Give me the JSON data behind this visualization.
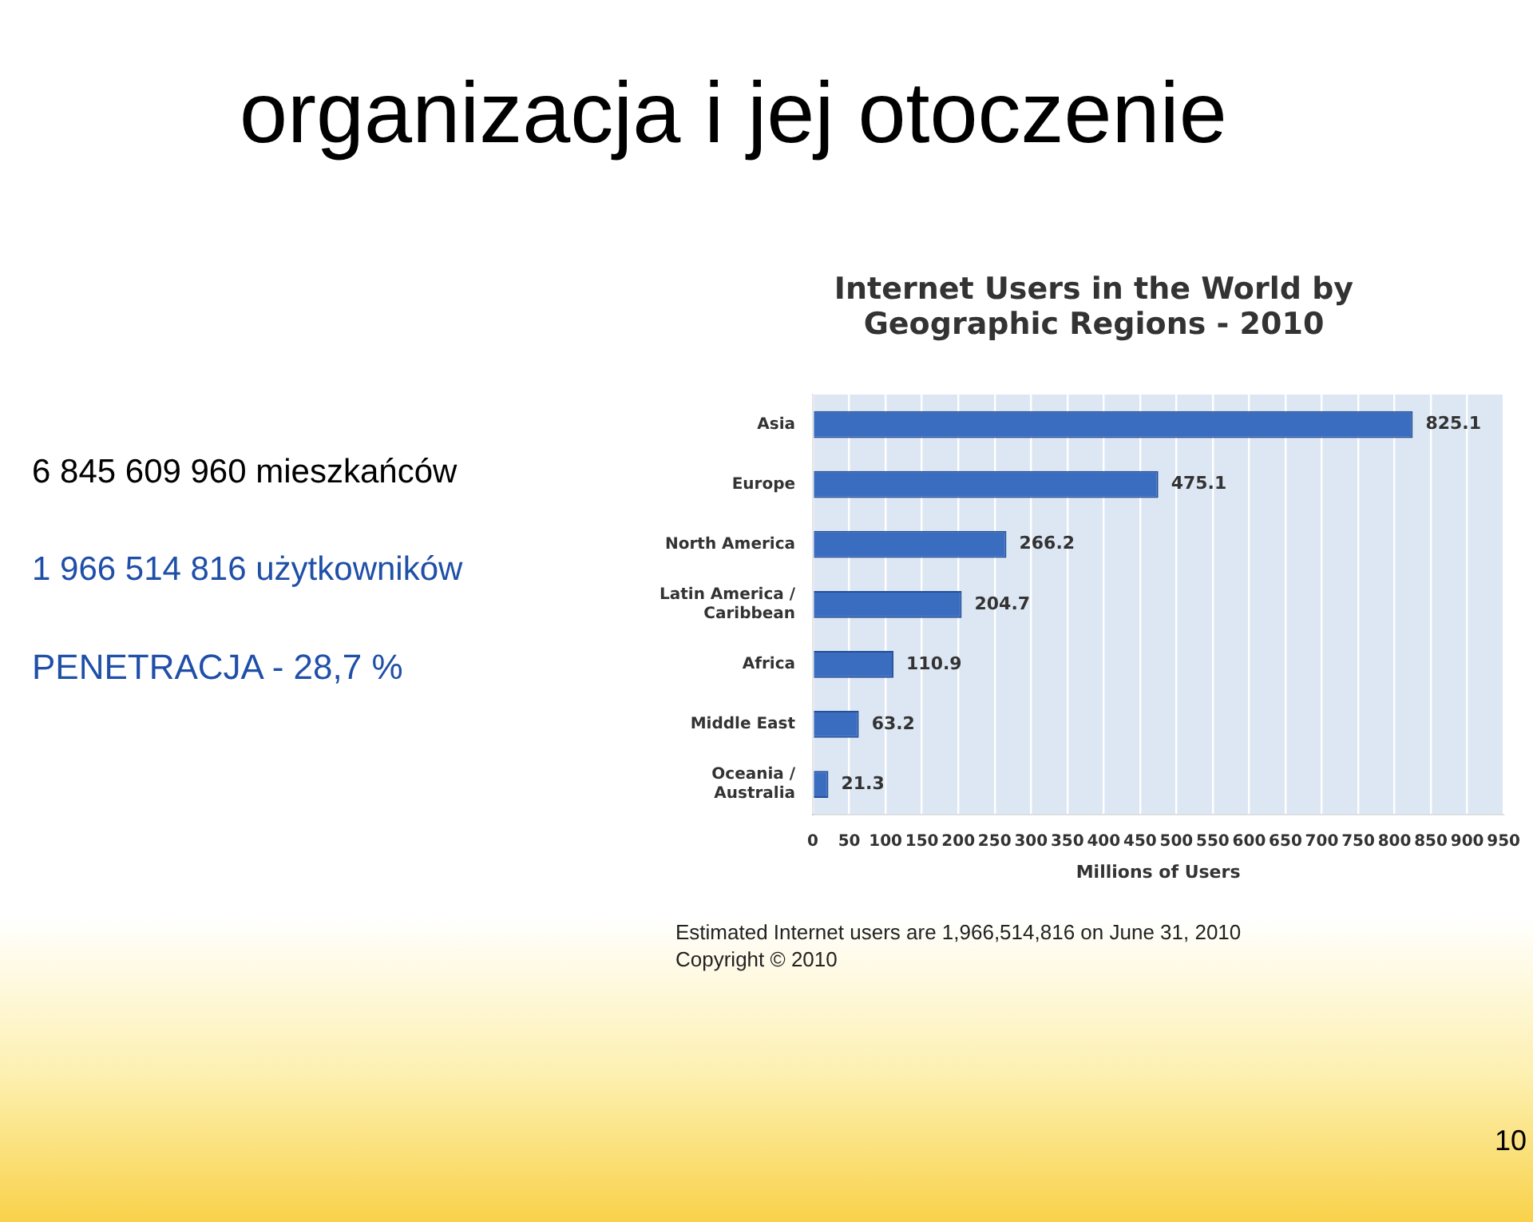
{
  "chart_data": {
    "type": "bar",
    "orientation": "horizontal",
    "title": "Internet Users in the World by Geographic Regions - 2010",
    "xlabel": "Millions of Users",
    "categories": [
      "Asia",
      "Europe",
      "North America",
      "Latin America / Caribbean",
      "Africa",
      "Middle East",
      "Oceania / Australia"
    ],
    "values": [
      825.1,
      475.1,
      266.2,
      204.7,
      110.9,
      63.2,
      21.3
    ],
    "color": "#3a6cc0",
    "xlim": [
      0,
      950
    ],
    "xticks": [
      0,
      50,
      100,
      150,
      200,
      250,
      300,
      350,
      400,
      450,
      500,
      550,
      600,
      650,
      700,
      750,
      800,
      850,
      900,
      950
    ],
    "grid": "x",
    "data_labels": true,
    "legend": false,
    "annotations": [
      "organizacja i jej otoczenie",
      "6 845 609 960 mieszkańców",
      "1 966 514 816 użytkowników",
      "PENETRACJA - 28,7 %",
      "Estimated Internet users are 1,966,514,816 on June 31, 2010",
      "Copyright © 2010",
      "10"
    ]
  }
}
